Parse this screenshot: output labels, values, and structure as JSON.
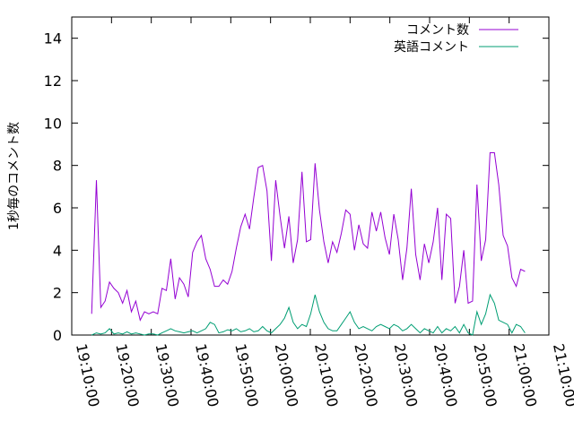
{
  "chart_data": {
    "type": "line",
    "ylabel": "1秒毎のコメント数",
    "ylim": [
      0,
      15
    ],
    "yticks": [
      0,
      2,
      4,
      6,
      8,
      10,
      12,
      14
    ],
    "xlim_minutes": [
      0,
      120
    ],
    "xtick_labels": [
      "19:10:00",
      "19:20:00",
      "19:30:00",
      "19:40:00",
      "19:50:00",
      "20:00:00",
      "20:10:00",
      "20:20:00",
      "20:30:00",
      "20:40:00",
      "20:50:00",
      "21:00:00",
      "21:10:00"
    ],
    "legend_position": "top-right",
    "x_start_label": "19:10:00",
    "series": [
      {
        "name": "コメント数",
        "color": "#9400d3",
        "points": [
          [
            5.0,
            1.0
          ],
          [
            6.2,
            7.3
          ],
          [
            7.3,
            1.3
          ],
          [
            8.4,
            1.6
          ],
          [
            9.5,
            2.5
          ],
          [
            10.6,
            2.2
          ],
          [
            11.7,
            2.0
          ],
          [
            12.8,
            1.5
          ],
          [
            13.9,
            2.1
          ],
          [
            15.0,
            1.1
          ],
          [
            16.1,
            1.6
          ],
          [
            17.2,
            0.7
          ],
          [
            18.3,
            1.1
          ],
          [
            19.4,
            1.0
          ],
          [
            20.5,
            1.1
          ],
          [
            21.6,
            1.0
          ],
          [
            22.7,
            2.2
          ],
          [
            23.8,
            2.1
          ],
          [
            24.9,
            3.6
          ],
          [
            26.0,
            1.7
          ],
          [
            27.1,
            2.7
          ],
          [
            28.2,
            2.4
          ],
          [
            29.3,
            1.8
          ],
          [
            30.4,
            3.9
          ],
          [
            31.5,
            4.4
          ],
          [
            32.6,
            4.7
          ],
          [
            33.7,
            3.6
          ],
          [
            34.8,
            3.1
          ],
          [
            35.9,
            2.3
          ],
          [
            37.0,
            2.3
          ],
          [
            38.1,
            2.6
          ],
          [
            39.2,
            2.4
          ],
          [
            40.3,
            3.0
          ],
          [
            41.4,
            4.1
          ],
          [
            42.5,
            5.1
          ],
          [
            43.6,
            5.7
          ],
          [
            44.7,
            5.0
          ],
          [
            45.8,
            6.5
          ],
          [
            46.9,
            7.9
          ],
          [
            48.0,
            8.0
          ],
          [
            49.1,
            6.8
          ],
          [
            50.2,
            3.5
          ],
          [
            51.3,
            7.3
          ],
          [
            52.4,
            5.6
          ],
          [
            53.5,
            4.1
          ],
          [
            54.6,
            5.6
          ],
          [
            55.7,
            3.4
          ],
          [
            56.8,
            4.5
          ],
          [
            57.9,
            7.7
          ],
          [
            59.0,
            4.4
          ],
          [
            60.1,
            4.5
          ],
          [
            61.2,
            8.1
          ],
          [
            62.3,
            5.9
          ],
          [
            63.4,
            4.4
          ],
          [
            64.5,
            3.4
          ],
          [
            65.6,
            4.4
          ],
          [
            66.7,
            3.9
          ],
          [
            67.8,
            4.8
          ],
          [
            68.9,
            5.9
          ],
          [
            70.0,
            5.7
          ],
          [
            71.1,
            4.0
          ],
          [
            72.2,
            5.2
          ],
          [
            73.3,
            4.3
          ],
          [
            74.4,
            4.1
          ],
          [
            75.5,
            5.8
          ],
          [
            76.6,
            4.9
          ],
          [
            77.7,
            5.8
          ],
          [
            78.8,
            4.6
          ],
          [
            79.9,
            3.8
          ],
          [
            81.0,
            5.7
          ],
          [
            82.1,
            4.5
          ],
          [
            83.2,
            2.6
          ],
          [
            84.3,
            4.1
          ],
          [
            85.4,
            6.9
          ],
          [
            86.5,
            3.8
          ],
          [
            87.6,
            2.6
          ],
          [
            88.7,
            4.3
          ],
          [
            89.8,
            3.4
          ],
          [
            90.9,
            4.4
          ],
          [
            92.0,
            6.0
          ],
          [
            93.1,
            2.6
          ],
          [
            94.2,
            5.7
          ],
          [
            95.3,
            5.5
          ],
          [
            96.4,
            1.5
          ],
          [
            97.5,
            2.3
          ],
          [
            98.6,
            4.0
          ],
          [
            99.7,
            1.5
          ],
          [
            100.8,
            1.6
          ],
          [
            101.9,
            7.1
          ],
          [
            103.0,
            3.5
          ],
          [
            104.1,
            4.5
          ],
          [
            105.2,
            8.6
          ],
          [
            106.3,
            8.6
          ],
          [
            107.4,
            7.1
          ],
          [
            108.5,
            4.7
          ],
          [
            109.6,
            4.2
          ],
          [
            110.7,
            2.7
          ],
          [
            111.8,
            2.3
          ],
          [
            112.9,
            3.1
          ],
          [
            114.0,
            3.0
          ]
        ]
      },
      {
        "name": "英語コメント",
        "color": "#009e73",
        "points": [
          [
            5.0,
            0.0
          ],
          [
            6.2,
            0.1
          ],
          [
            7.3,
            0.05
          ],
          [
            8.4,
            0.1
          ],
          [
            9.5,
            0.3
          ],
          [
            10.6,
            0.05
          ],
          [
            11.7,
            0.1
          ],
          [
            12.8,
            0.05
          ],
          [
            13.9,
            0.15
          ],
          [
            15.0,
            0.05
          ],
          [
            16.1,
            0.1
          ],
          [
            17.2,
            0.05
          ],
          [
            18.3,
            0.0
          ],
          [
            19.4,
            0.05
          ],
          [
            20.5,
            0.05
          ],
          [
            21.6,
            0.0
          ],
          [
            22.7,
            0.1
          ],
          [
            23.8,
            0.2
          ],
          [
            24.9,
            0.3
          ],
          [
            26.0,
            0.2
          ],
          [
            27.1,
            0.15
          ],
          [
            28.2,
            0.1
          ],
          [
            29.3,
            0.15
          ],
          [
            30.4,
            0.2
          ],
          [
            31.5,
            0.1
          ],
          [
            32.6,
            0.2
          ],
          [
            33.7,
            0.3
          ],
          [
            34.8,
            0.6
          ],
          [
            35.9,
            0.5
          ],
          [
            37.0,
            0.1
          ],
          [
            38.1,
            0.15
          ],
          [
            39.2,
            0.25
          ],
          [
            40.3,
            0.2
          ],
          [
            41.4,
            0.3
          ],
          [
            42.5,
            0.15
          ],
          [
            43.6,
            0.2
          ],
          [
            44.7,
            0.3
          ],
          [
            45.8,
            0.15
          ],
          [
            46.9,
            0.2
          ],
          [
            48.0,
            0.4
          ],
          [
            49.1,
            0.2
          ],
          [
            50.2,
            0.1
          ],
          [
            51.3,
            0.3
          ],
          [
            52.4,
            0.5
          ],
          [
            53.5,
            0.8
          ],
          [
            54.6,
            1.3
          ],
          [
            55.7,
            0.6
          ],
          [
            56.8,
            0.3
          ],
          [
            57.9,
            0.5
          ],
          [
            59.0,
            0.4
          ],
          [
            60.1,
            1.0
          ],
          [
            61.2,
            1.9
          ],
          [
            62.3,
            1.1
          ],
          [
            63.4,
            0.6
          ],
          [
            64.5,
            0.3
          ],
          [
            65.6,
            0.2
          ],
          [
            66.7,
            0.2
          ],
          [
            67.8,
            0.5
          ],
          [
            68.9,
            0.8
          ],
          [
            70.0,
            1.1
          ],
          [
            71.1,
            0.6
          ],
          [
            72.2,
            0.3
          ],
          [
            73.3,
            0.4
          ],
          [
            74.4,
            0.3
          ],
          [
            75.5,
            0.2
          ],
          [
            76.6,
            0.4
          ],
          [
            77.7,
            0.5
          ],
          [
            78.8,
            0.4
          ],
          [
            79.9,
            0.3
          ],
          [
            81.0,
            0.5
          ],
          [
            82.1,
            0.4
          ],
          [
            83.2,
            0.2
          ],
          [
            84.3,
            0.3
          ],
          [
            85.4,
            0.5
          ],
          [
            86.5,
            0.3
          ],
          [
            87.6,
            0.1
          ],
          [
            88.7,
            0.3
          ],
          [
            89.8,
            0.2
          ],
          [
            90.9,
            0.1
          ],
          [
            92.0,
            0.4
          ],
          [
            93.1,
            0.1
          ],
          [
            94.2,
            0.3
          ],
          [
            95.3,
            0.2
          ],
          [
            96.4,
            0.4
          ],
          [
            97.5,
            0.1
          ],
          [
            98.6,
            0.5
          ],
          [
            99.7,
            0.1
          ],
          [
            100.8,
            0.0
          ],
          [
            101.9,
            1.1
          ],
          [
            103.0,
            0.5
          ],
          [
            104.1,
            1.0
          ],
          [
            105.2,
            1.9
          ],
          [
            106.3,
            1.5
          ],
          [
            107.4,
            0.7
          ],
          [
            108.5,
            0.6
          ],
          [
            109.6,
            0.5
          ],
          [
            110.7,
            0.1
          ],
          [
            111.8,
            0.5
          ],
          [
            112.9,
            0.4
          ],
          [
            114.0,
            0.1
          ]
        ]
      }
    ]
  }
}
